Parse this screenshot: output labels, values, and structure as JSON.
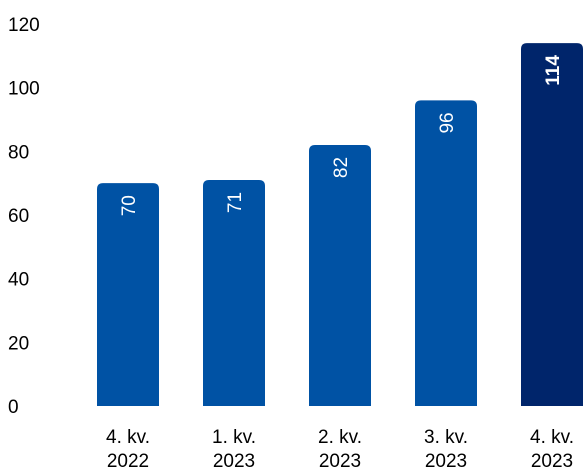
{
  "chart_data": {
    "type": "bar",
    "title": "",
    "xlabel": "",
    "ylabel": "",
    "categories": [
      [
        "4. kv.",
        "2022"
      ],
      [
        "1. kv.",
        "2023"
      ],
      [
        "2. kv.",
        "2023"
      ],
      [
        "3. kv.",
        "2023"
      ],
      [
        "4. kv.",
        "2023"
      ]
    ],
    "values": [
      70,
      71,
      82,
      96,
      114
    ],
    "value_labels": [
      "70",
      "71",
      "82",
      "96",
      "114"
    ],
    "bold_labels": [
      false,
      false,
      false,
      false,
      true
    ],
    "bar_colors": [
      "#0052a4",
      "#0052a4",
      "#0052a4",
      "#0052a4",
      "#00256b"
    ],
    "yticks": [
      "0",
      "20",
      "40",
      "60",
      "80",
      "100",
      "120"
    ],
    "ylim": [
      0,
      120
    ],
    "grid": false,
    "legend": "none"
  }
}
